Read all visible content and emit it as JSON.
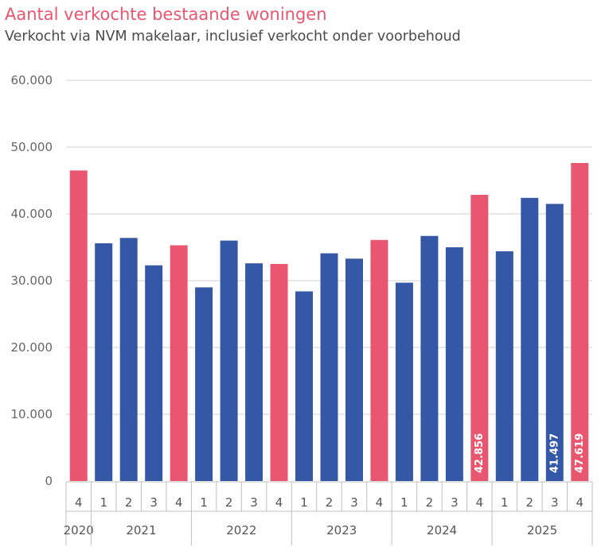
{
  "chart_data": {
    "type": "bar",
    "title": "Aantal verkochte bestaande woningen",
    "subtitle": "Verkocht via NVM makelaar, inclusief verkocht onder voorbehoud",
    "xlabel": "",
    "ylabel": "",
    "ylim": [
      0,
      60000
    ],
    "yticks": [
      0,
      10000,
      20000,
      30000,
      40000,
      50000,
      60000
    ],
    "ytick_labels": [
      "0",
      "10.000",
      "20.000",
      "30.000",
      "40.000",
      "50.000",
      "60.000"
    ],
    "grid": true,
    "categories": [
      "4",
      "1",
      "2",
      "3",
      "4",
      "1",
      "2",
      "3",
      "4",
      "1",
      "2",
      "3",
      "4",
      "1",
      "2",
      "3",
      "4",
      "1",
      "2",
      "3",
      "4"
    ],
    "years": [
      {
        "label": "2020",
        "count": 1
      },
      {
        "label": "2021",
        "count": 4
      },
      {
        "label": "2022",
        "count": 4
      },
      {
        "label": "2023",
        "count": 4
      },
      {
        "label": "2024",
        "count": 4
      },
      {
        "label": "2025",
        "count": 4
      }
    ],
    "values": [
      46500,
      35600,
      36400,
      32300,
      35300,
      29000,
      36000,
      32600,
      32500,
      28400,
      34100,
      33300,
      36100,
      29700,
      36700,
      35000,
      42856,
      34400,
      42400,
      41497,
      47619
    ],
    "highlight_q4": [
      true,
      false,
      false,
      false,
      true,
      false,
      false,
      false,
      true,
      false,
      false,
      false,
      true,
      false,
      false,
      false,
      true,
      false,
      false,
      false,
      true
    ],
    "data_labels": [
      {
        "index": 16,
        "text": "42.856"
      },
      {
        "index": 19,
        "text": "41.497"
      },
      {
        "index": 20,
        "text": "47.619"
      }
    ],
    "colors": {
      "q4": "#e8566f",
      "other": "#3558a6",
      "grid": "#d9d9d9",
      "axis": "#bfbfbf"
    }
  }
}
